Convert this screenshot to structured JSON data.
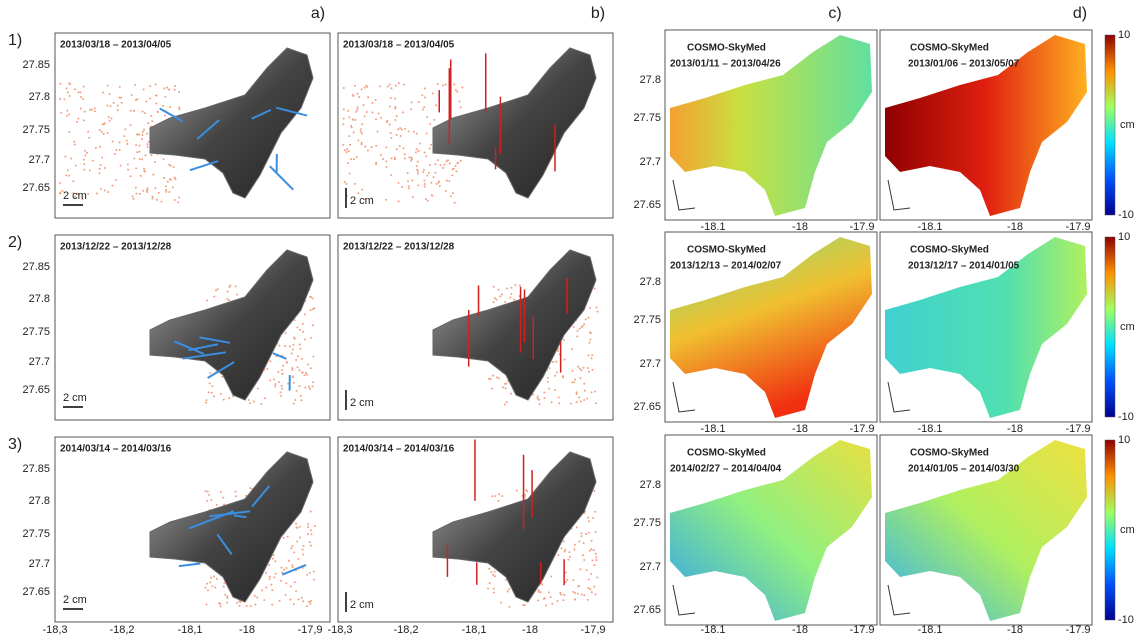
{
  "columns": [
    "a)",
    "b)",
    "c)",
    "d)"
  ],
  "rows": [
    {
      "label": "1)",
      "a_dates": "2013/03/18 – 2013/04/05",
      "b_dates": "2013/03/18 – 2013/04/05",
      "c": {
        "sensor": "COSMO-SkyMed",
        "dates": "2013/01/11 – 2013/04/26"
      },
      "d": {
        "sensor": "COSMO-SkyMed",
        "dates": "2013/01/06 – 2013/05/07"
      }
    },
    {
      "label": "2)",
      "a_dates": "2013/12/22 – 2013/12/28",
      "b_dates": "2013/12/22 – 2013/12/28",
      "c": {
        "sensor": "COSMO-SkyMed",
        "dates": "2013/12/13 – 2014/02/07"
      },
      "d": {
        "sensor": "COSMO-SkyMed",
        "dates": "2013/12/17 – 2014/01/05"
      }
    },
    {
      "label": "3)",
      "a_dates": "2014/03/14 – 2014/03/16",
      "b_dates": "2014/03/14 – 2014/03/16",
      "c": {
        "sensor": "COSMO-SkyMed",
        "dates": "2014/02/27 – 2014/04/04"
      },
      "d": {
        "sensor": "COSMO-SkyMed",
        "dates": "2014/01/05 – 2014/03/30"
      }
    }
  ],
  "scale_bar": "2 cm",
  "gps_yticks": [
    "27.85",
    "27.8",
    "27.75",
    "27.7",
    "27.65"
  ],
  "gps_xticks": [
    "-18,3",
    "-18,2",
    "-18,1",
    "-18",
    "-17,9"
  ],
  "insar_yticks": [
    "27.8",
    "27.75",
    "27.7",
    "27.65"
  ],
  "insar_xticks": [
    "-18.1",
    "-18",
    "-17.9"
  ],
  "colorbar": {
    "max": "10",
    "unit": "cm",
    "min": "-10"
  }
}
